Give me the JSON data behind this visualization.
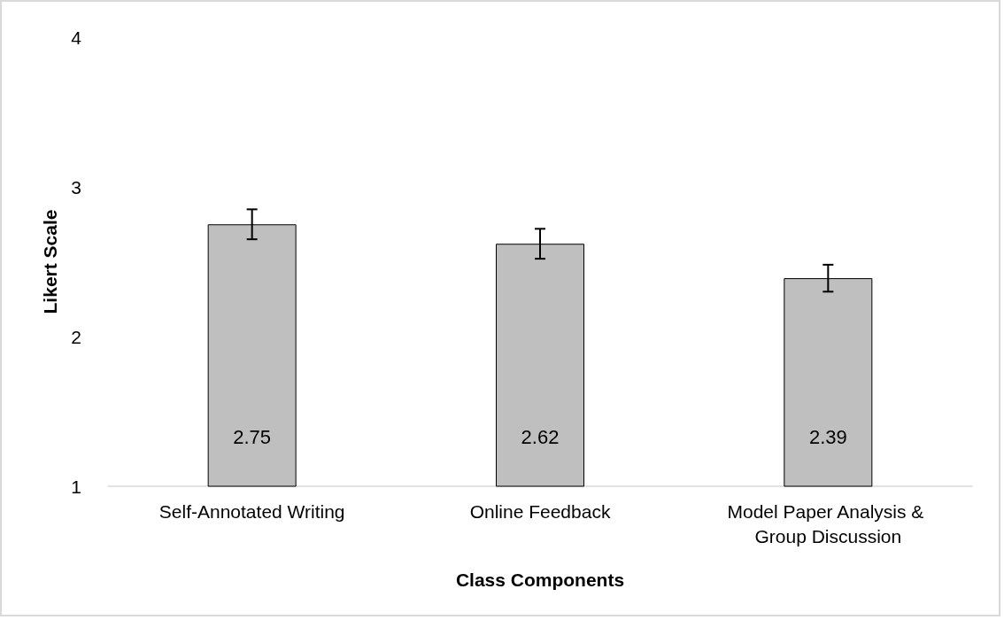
{
  "chart_data": {
    "type": "bar",
    "xlabel": "Class Components",
    "ylabel": "Likert Scale",
    "categories": [
      "Self-Annotated Writing",
      "Online Feedback",
      "Model Paper Analysis & Group Discussion"
    ],
    "values": [
      2.75,
      2.62,
      2.39
    ],
    "errors": [
      0.1,
      0.1,
      0.09
    ],
    "color": "#bfbfbf",
    "ylim": [
      1,
      4
    ],
    "yticks": [
      1,
      2,
      3,
      4
    ],
    "grid": false,
    "data_labels": true
  }
}
